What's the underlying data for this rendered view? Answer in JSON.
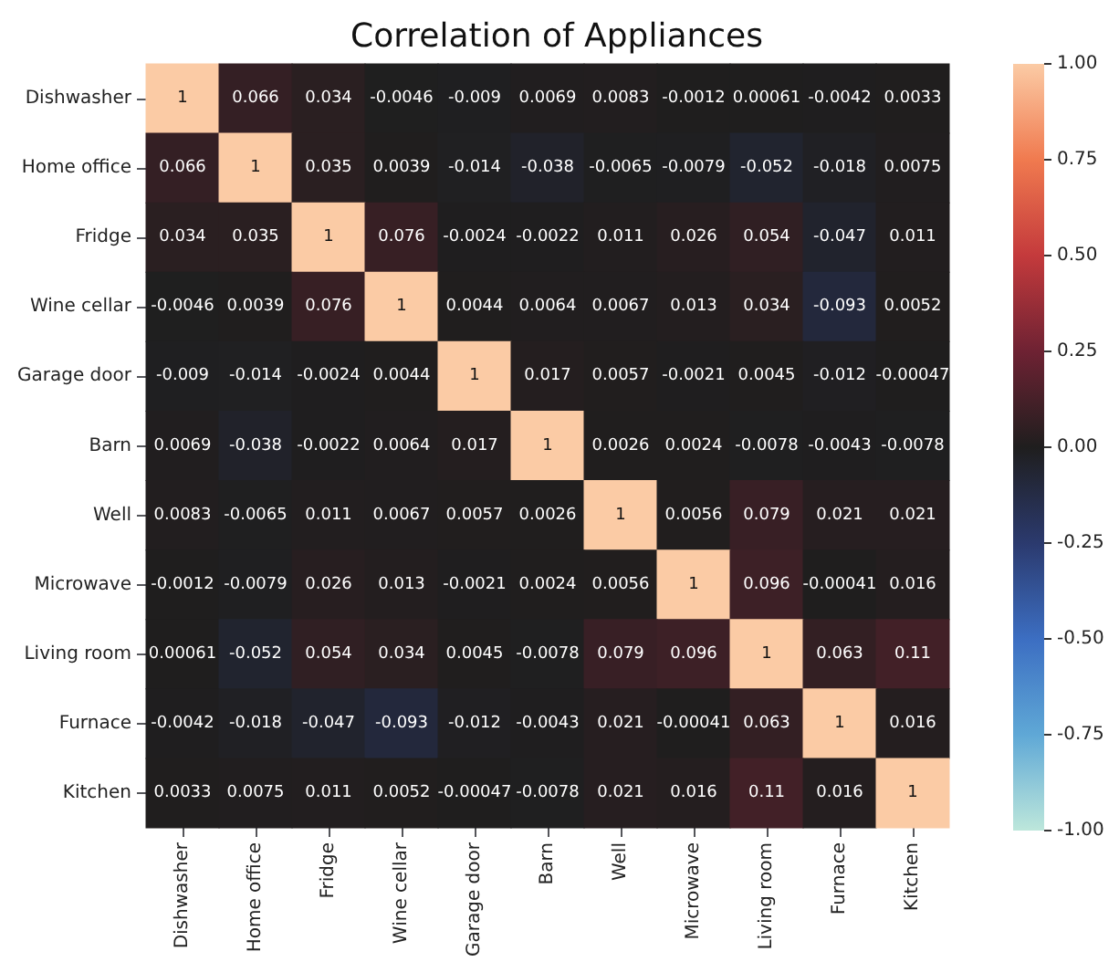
{
  "chart_data": {
    "type": "heatmap",
    "title": "Correlation of Appliances",
    "categories": [
      "Dishwasher",
      "Home office",
      "Fridge",
      "Wine cellar",
      "Garage door",
      "Barn",
      "Well",
      "Microwave",
      "Living room",
      "Furnace",
      "Kitchen"
    ],
    "y_categories": [
      "Dishwasher",
      "Home office",
      "Fridge",
      "Wine cellar",
      "Garage door",
      "Barn",
      "Well",
      "Microwave",
      "Living room",
      "Furnace",
      "Kitchen"
    ],
    "cells": [
      [
        1,
        0.066,
        0.034,
        -0.0046,
        -0.009,
        0.0069,
        0.0083,
        -0.0012,
        0.00061,
        -0.0042,
        0.0033
      ],
      [
        0.066,
        1,
        0.035,
        0.0039,
        -0.014,
        -0.038,
        -0.0065,
        -0.0079,
        -0.052,
        -0.018,
        0.0075
      ],
      [
        0.034,
        0.035,
        1,
        0.076,
        -0.0024,
        -0.0022,
        0.011,
        0.026,
        0.054,
        -0.047,
        0.011
      ],
      [
        -0.0046,
        0.0039,
        0.076,
        1,
        0.0044,
        0.0064,
        0.0067,
        0.013,
        0.034,
        -0.093,
        0.0052
      ],
      [
        -0.009,
        -0.014,
        -0.0024,
        0.0044,
        1,
        0.017,
        0.0057,
        -0.0021,
        0.0045,
        -0.012,
        -0.00047
      ],
      [
        0.0069,
        -0.038,
        -0.0022,
        0.0064,
        0.017,
        1,
        0.0026,
        0.0024,
        -0.0078,
        -0.0043,
        -0.0078
      ],
      [
        0.0083,
        -0.0065,
        0.011,
        0.0067,
        0.0057,
        0.0026,
        1,
        0.0056,
        0.079,
        0.021,
        0.021
      ],
      [
        -0.0012,
        -0.0079,
        0.026,
        0.013,
        -0.0021,
        0.0024,
        0.0056,
        1,
        0.096,
        -0.00041,
        0.016
      ],
      [
        0.00061,
        -0.052,
        0.054,
        0.034,
        0.0045,
        -0.0078,
        0.079,
        0.096,
        1,
        0.063,
        0.11
      ],
      [
        -0.0042,
        -0.018,
        -0.047,
        -0.093,
        -0.012,
        -0.0043,
        0.021,
        -0.00041,
        0.063,
        1,
        0.016
      ],
      [
        0.0033,
        0.0075,
        0.011,
        0.0052,
        -0.00047,
        -0.0078,
        0.021,
        0.016,
        0.11,
        0.016,
        1
      ]
    ],
    "clim": [
      -1,
      1
    ],
    "cticks": [
      {
        "value": 1,
        "label": "1.00"
      },
      {
        "value": 0.75,
        "label": "0.75"
      },
      {
        "value": 0.5,
        "label": "0.50"
      },
      {
        "value": 0.25,
        "label": "0.25"
      },
      {
        "value": 0,
        "label": "0.00"
      },
      {
        "value": -0.25,
        "label": "-0.25"
      },
      {
        "value": -0.5,
        "label": "-0.50"
      },
      {
        "value": -0.75,
        "label": "-0.75"
      },
      {
        "value": -1,
        "label": "-1.00"
      }
    ],
    "data_labels": true
  }
}
